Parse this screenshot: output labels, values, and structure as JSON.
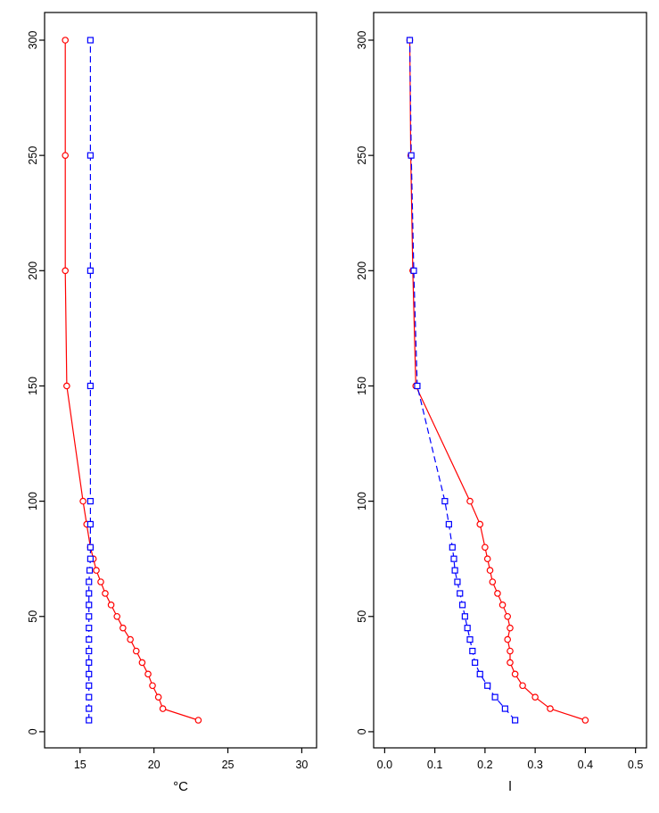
{
  "figure": {
    "background": "#ffffff",
    "axis_color": "#000000"
  },
  "chart_data": [
    {
      "type": "line",
      "title": "",
      "xlabel": "°C",
      "ylabel": "",
      "xlim": [
        12.6,
        31.0
      ],
      "ylim": [
        -7,
        312
      ],
      "grid": false,
      "legend": null,
      "xticks": [
        {
          "v": 15,
          "label": "15"
        },
        {
          "v": 20,
          "label": "20"
        },
        {
          "v": 25,
          "label": "25"
        },
        {
          "v": 30,
          "label": "30"
        }
      ],
      "yticks": [
        {
          "v": 0,
          "label": "0"
        },
        {
          "v": 50,
          "label": "50"
        },
        {
          "v": 100,
          "label": "100"
        },
        {
          "v": 150,
          "label": "150"
        },
        {
          "v": 200,
          "label": "200"
        },
        {
          "v": 250,
          "label": "250"
        },
        {
          "v": 300,
          "label": "300"
        }
      ],
      "series": [
        {
          "name": "red-solid-circles",
          "color": "#ff0000",
          "marker": "circle",
          "line": "solid",
          "y": [
            5,
            10,
            15,
            20,
            25,
            30,
            35,
            40,
            45,
            50,
            55,
            60,
            65,
            70,
            75,
            80,
            90,
            100,
            150,
            200,
            250,
            300
          ],
          "x": [
            23.0,
            20.6,
            20.3,
            19.9,
            19.6,
            19.2,
            18.8,
            18.4,
            17.9,
            17.5,
            17.1,
            16.7,
            16.4,
            16.1,
            15.9,
            15.7,
            15.45,
            15.2,
            14.1,
            14.0,
            14.0,
            14.0
          ]
        },
        {
          "name": "blue-dashed-squares",
          "color": "#0000ff",
          "marker": "square",
          "line": "dashed",
          "y": [
            5,
            10,
            15,
            20,
            25,
            30,
            35,
            40,
            45,
            50,
            55,
            60,
            65,
            70,
            75,
            80,
            90,
            100,
            150,
            200,
            250,
            300
          ],
          "x": [
            15.6,
            15.6,
            15.6,
            15.6,
            15.6,
            15.6,
            15.6,
            15.6,
            15.6,
            15.6,
            15.6,
            15.6,
            15.6,
            15.65,
            15.7,
            15.7,
            15.7,
            15.7,
            15.7,
            15.7,
            15.7,
            15.7
          ]
        }
      ]
    },
    {
      "type": "line",
      "title": "",
      "xlabel": "l",
      "ylabel": "",
      "xlim": [
        -0.022,
        0.522
      ],
      "ylim": [
        -7,
        312
      ],
      "grid": false,
      "legend": null,
      "xticks": [
        {
          "v": 0.0,
          "label": "0.0"
        },
        {
          "v": 0.1,
          "label": "0.1"
        },
        {
          "v": 0.2,
          "label": "0.2"
        },
        {
          "v": 0.3,
          "label": "0.3"
        },
        {
          "v": 0.4,
          "label": "0.4"
        },
        {
          "v": 0.5,
          "label": "0.5"
        }
      ],
      "yticks": [
        {
          "v": 0,
          "label": "0"
        },
        {
          "v": 50,
          "label": "50"
        },
        {
          "v": 100,
          "label": "100"
        },
        {
          "v": 150,
          "label": "150"
        },
        {
          "v": 200,
          "label": "200"
        },
        {
          "v": 250,
          "label": "250"
        },
        {
          "v": 300,
          "label": "300"
        }
      ],
      "series": [
        {
          "name": "red-solid-circles",
          "color": "#ff0000",
          "marker": "circle",
          "line": "solid",
          "y": [
            5,
            10,
            15,
            20,
            25,
            30,
            35,
            40,
            45,
            50,
            55,
            60,
            65,
            70,
            75,
            80,
            90,
            100,
            150,
            200,
            250,
            300
          ],
          "x": [
            0.4,
            0.33,
            0.3,
            0.275,
            0.26,
            0.25,
            0.25,
            0.245,
            0.25,
            0.245,
            0.235,
            0.225,
            0.215,
            0.21,
            0.205,
            0.2,
            0.19,
            0.17,
            0.062,
            0.056,
            0.052,
            0.05
          ]
        },
        {
          "name": "blue-dashed-squares",
          "color": "#0000ff",
          "marker": "square",
          "line": "dashed",
          "y": [
            5,
            10,
            15,
            20,
            25,
            30,
            35,
            40,
            45,
            50,
            55,
            60,
            65,
            70,
            75,
            80,
            90,
            100,
            150,
            200,
            250,
            300
          ],
          "x": [
            0.26,
            0.24,
            0.22,
            0.205,
            0.19,
            0.18,
            0.175,
            0.17,
            0.165,
            0.16,
            0.155,
            0.15,
            0.145,
            0.14,
            0.138,
            0.135,
            0.128,
            0.12,
            0.065,
            0.058,
            0.053,
            0.05
          ]
        }
      ]
    }
  ]
}
